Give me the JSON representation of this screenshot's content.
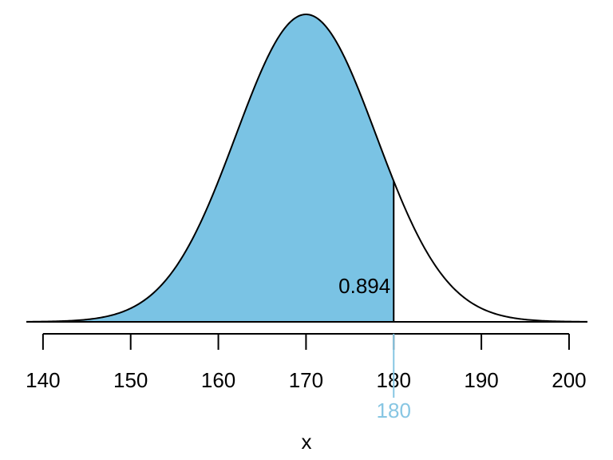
{
  "chart_data": {
    "type": "normal",
    "mean": 170,
    "sd": 8,
    "cutoff": 180,
    "area": 0.894,
    "xlabel": "x",
    "xlim": [
      138.1,
      202.1
    ],
    "xticks": [
      140,
      150,
      160,
      170,
      180,
      190,
      200
    ],
    "fill_color": "#7ac3e4",
    "cutoff_color": "#87c6e3"
  }
}
